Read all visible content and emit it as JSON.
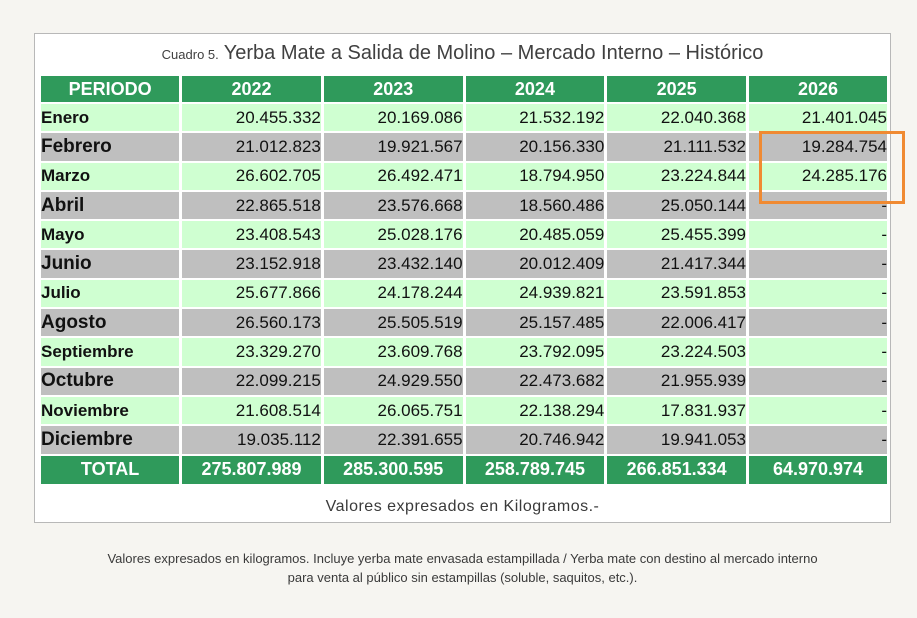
{
  "caption": {
    "prefix": "Cuadro 5.",
    "title": "Yerba Mate a Salida de Molino  – Mercado Interno – Histórico"
  },
  "table": {
    "headers": [
      "PERIODO",
      "2022",
      "2023",
      "2024",
      "2025",
      "2026"
    ],
    "rows": [
      {
        "label": "Enero",
        "values": [
          "20.455.332",
          "20.169.086",
          "21.532.192",
          "22.040.368",
          "21.401.045"
        ]
      },
      {
        "label": "Febrero",
        "values": [
          "21.012.823",
          "19.921.567",
          "20.156.330",
          "21.111.532",
          "19.284.754"
        ]
      },
      {
        "label": "Marzo",
        "values": [
          "26.602.705",
          "26.492.471",
          "18.794.950",
          "23.224.844",
          "24.285.176"
        ]
      },
      {
        "label": "Abril",
        "values": [
          "22.865.518",
          "23.576.668",
          "18.560.486",
          "25.050.144",
          "-"
        ]
      },
      {
        "label": "Mayo",
        "values": [
          "23.408.543",
          "25.028.176",
          "20.485.059",
          "25.455.399",
          "-"
        ]
      },
      {
        "label": "Junio",
        "values": [
          "23.152.918",
          "23.432.140",
          "20.012.409",
          "21.417.344",
          "-"
        ]
      },
      {
        "label": "Julio",
        "values": [
          "25.677.866",
          "24.178.244",
          "24.939.821",
          "23.591.853",
          "-"
        ]
      },
      {
        "label": "Agosto",
        "values": [
          "26.560.173",
          "25.505.519",
          "25.157.485",
          "22.006.417",
          "-"
        ]
      },
      {
        "label": "Septiembre",
        "values": [
          "23.329.270",
          "23.609.768",
          "23.792.095",
          "23.224.503",
          "-"
        ]
      },
      {
        "label": "Octubre",
        "values": [
          "22.099.215",
          "24.929.550",
          "22.473.682",
          "21.955.939",
          "-"
        ]
      },
      {
        "label": "Noviembre",
        "values": [
          "21.608.514",
          "26.065.751",
          "22.138.294",
          "17.831.937",
          "-"
        ]
      },
      {
        "label": "Diciembre",
        "values": [
          "19.035.112",
          "22.391.655",
          "20.746.942",
          "19.941.053",
          "-"
        ]
      }
    ],
    "total": {
      "label": "TOTAL",
      "values": [
        "275.807.989",
        "285.300.595",
        "258.789.745",
        "266.851.334",
        "64.970.974"
      ]
    }
  },
  "units_note": "Valores expresados en Kilogramos.-",
  "footnote": {
    "line1": "Valores expresados en kilogramos. Incluye yerba mate envasada estampillada / Yerba mate con destino al mercado interno",
    "line2": "para venta al público sin estampillas (soluble, saquitos, etc.)."
  },
  "colors": {
    "header_green": "#2f9a5b",
    "row_light": "#cfffd1",
    "row_dark": "#bfbfbf",
    "highlight_orange": "#f08a32"
  }
}
